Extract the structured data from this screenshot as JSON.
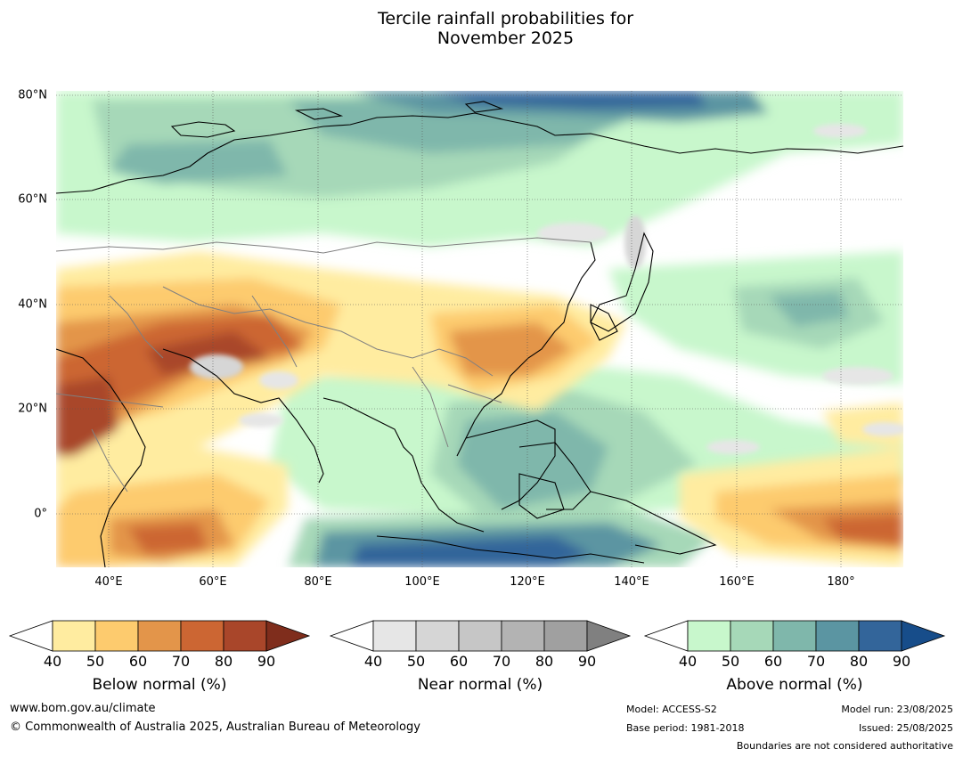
{
  "title_line1": "Tercile rainfall probabilities for",
  "title_line2": "November 2025",
  "map": {
    "lat_labels": [
      {
        "text": "80°N",
        "lat": 80
      },
      {
        "text": "60°N",
        "lat": 60
      },
      {
        "text": "40°N",
        "lat": 40
      },
      {
        "text": "20°N",
        "lat": 20
      },
      {
        "text": "0°",
        "lat": 0
      }
    ],
    "lon_labels": [
      {
        "text": "40°E",
        "lon": 40
      },
      {
        "text": "60°E",
        "lon": 60
      },
      {
        "text": "80°E",
        "lon": 80
      },
      {
        "text": "100°E",
        "lon": 100
      },
      {
        "text": "120°E",
        "lon": 120
      },
      {
        "text": "140°E",
        "lon": 140
      },
      {
        "text": "160°E",
        "lon": 160
      },
      {
        "text": "180°",
        "lon": 180
      }
    ],
    "extent": {
      "lon_min": 30,
      "lon_max": 192,
      "lat_min": -10,
      "lat_max": 81
    }
  },
  "colorbars": [
    {
      "label": "Below normal (%)",
      "ticks": [
        "40",
        "50",
        "60",
        "70",
        "80",
        "90"
      ],
      "colors": [
        "#ffffff",
        "#ffeca0",
        "#fdcb6e",
        "#e3954a",
        "#cc6633",
        "#a9462a",
        "#7f2d1c"
      ]
    },
    {
      "label": "Near normal (%)",
      "ticks": [
        "40",
        "50",
        "60",
        "70",
        "80",
        "90"
      ],
      "colors": [
        "#ffffff",
        "#e6e6e6",
        "#d6d6d6",
        "#c6c6c6",
        "#b3b3b3",
        "#a0a0a0",
        "#808080"
      ]
    },
    {
      "label": "Above normal (%)",
      "ticks": [
        "40",
        "50",
        "60",
        "70",
        "80",
        "90"
      ],
      "colors": [
        "#ffffff",
        "#c8f7cc",
        "#a6d8b8",
        "#7fb7ab",
        "#5b95a2",
        "#33659a",
        "#174d8a"
      ]
    }
  ],
  "footer": {
    "website": "www.bom.gov.au/climate",
    "copyright": "© Commonwealth of Australia 2025, Australian Bureau of Meteorology",
    "model": "Model: ACCESS-S2",
    "base_period": "Base period: 1981-2018",
    "model_run": "Model run: 23/08/2025",
    "issued": "Issued: 25/08/2025",
    "disclaimer": "Boundaries are not considered authoritative"
  }
}
